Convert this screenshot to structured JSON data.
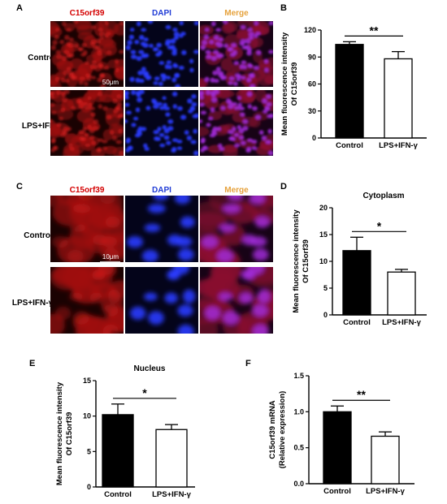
{
  "figure": {
    "panel_letters": [
      "A",
      "B",
      "C",
      "D",
      "E",
      "F"
    ],
    "micrograph_panels": [
      {
        "id": "A",
        "channel_headers": [
          "C15orf39",
          "DAPI",
          "Merge"
        ],
        "row_labels": [
          "Control",
          "LPS+IFN-γ"
        ],
        "scale_bar": "50μm",
        "magnification": "low"
      },
      {
        "id": "C",
        "channel_headers": [
          "C15orf39",
          "DAPI",
          "Merge"
        ],
        "row_labels": [
          "Control",
          "LPS+IFN-γ"
        ],
        "scale_bar": "10μm",
        "magnification": "high"
      }
    ],
    "colors": {
      "c15orf39": "#d40000",
      "dapi": "#1f3bd6",
      "merge": "#e6a23c",
      "bar_control": "#000000",
      "bar_treated": "#ffffff"
    }
  },
  "chart_data": [
    {
      "id": "B",
      "type": "bar",
      "title": "",
      "categories": [
        "Control",
        "LPS+IFN-γ"
      ],
      "values": [
        104,
        88
      ],
      "errors": [
        3,
        8
      ],
      "ylabel": "Mean fluorescence intensity Of C15orf39",
      "ylabel_lines": [
        "Mean fluorescence intensity",
        "Of C15orf39"
      ],
      "ylim": [
        0,
        120
      ],
      "yticks": [
        0,
        30,
        60,
        90,
        120
      ],
      "significance": "**"
    },
    {
      "id": "D",
      "type": "bar",
      "title": "Cytoplasm",
      "categories": [
        "Control",
        "LPS+IFN-γ"
      ],
      "values": [
        12,
        8
      ],
      "errors": [
        2.5,
        0.5
      ],
      "ylabel": "Mean fluorescence intensity Of C15orf39",
      "ylabel_lines": [
        "Mean fluorescence intensity",
        "Of C15orf39"
      ],
      "ylim": [
        0,
        20
      ],
      "yticks": [
        0,
        5,
        10,
        15,
        20
      ],
      "significance": "*"
    },
    {
      "id": "E",
      "type": "bar",
      "title": "Nucleus",
      "categories": [
        "Control",
        "LPS+IFN-γ"
      ],
      "values": [
        10.2,
        8.1
      ],
      "errors": [
        1.5,
        0.7
      ],
      "ylabel": "Mean fluorescence intensity Of C15orf39",
      "ylabel_lines": [
        "Mean fluorescence intensity",
        "Of C15orf39"
      ],
      "ylim": [
        0,
        15
      ],
      "yticks": [
        0,
        5,
        10,
        15
      ],
      "significance": "*"
    },
    {
      "id": "F",
      "type": "bar",
      "title": "",
      "categories": [
        "Control",
        "LPS+IFN-γ"
      ],
      "values": [
        1.0,
        0.66
      ],
      "errors": [
        0.08,
        0.06
      ],
      "ylabel": "C15orf39 mRNA (Relative expression)",
      "ylabel_lines": [
        "C15orf39 mRNA",
        "(Relative expression)"
      ],
      "ylim": [
        0,
        1.5
      ],
      "yticks": [
        "0.0",
        "0.5",
        "1.0",
        "1.5"
      ],
      "significance": "**"
    }
  ]
}
